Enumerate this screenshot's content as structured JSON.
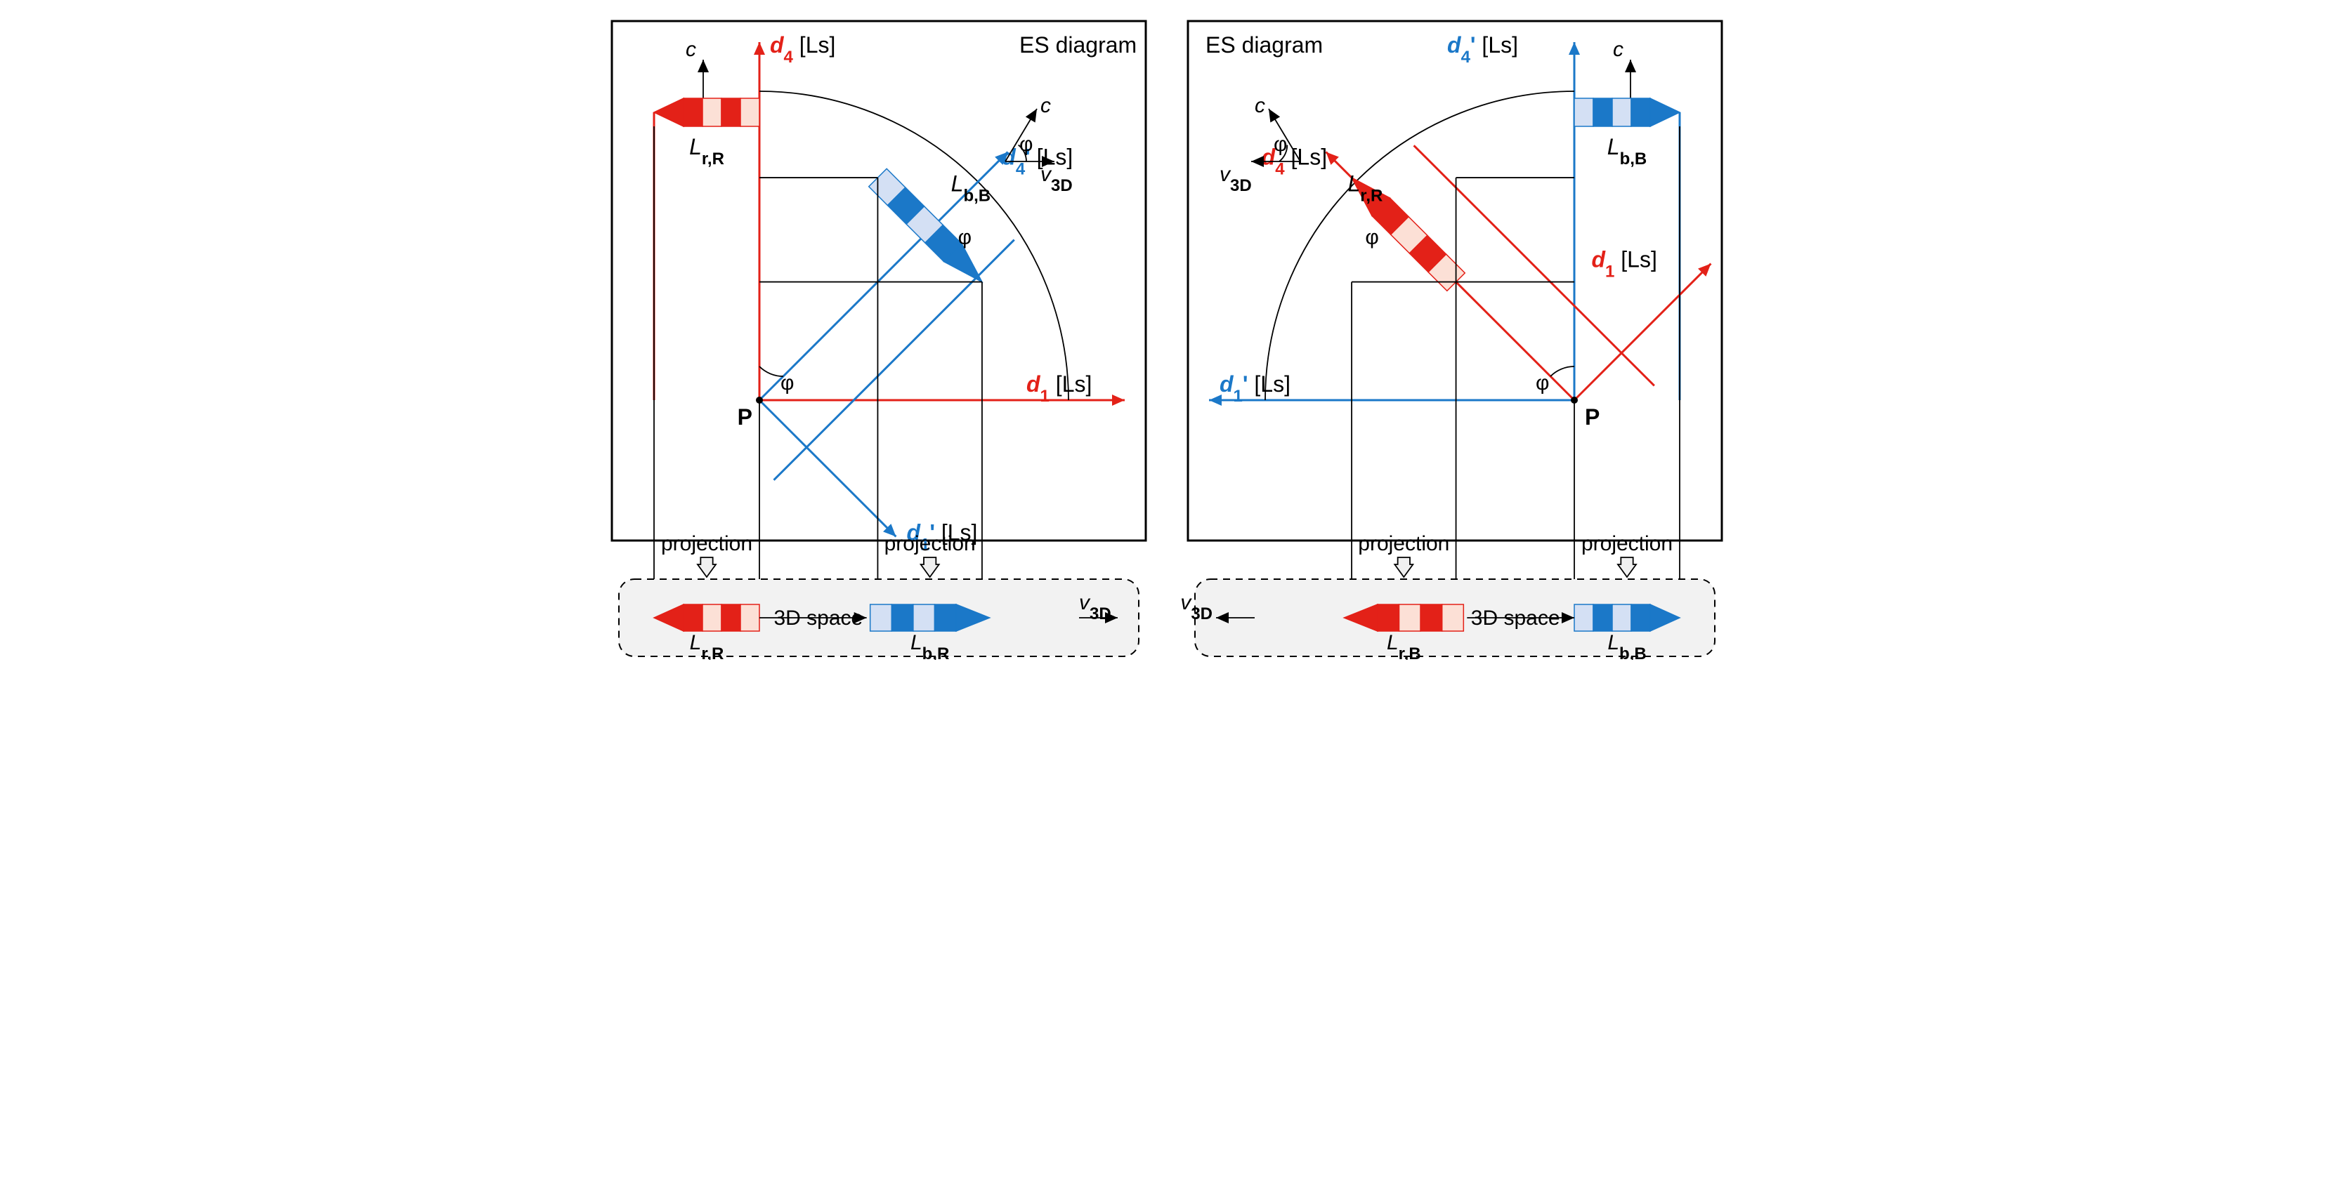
{
  "colors": {
    "red": "#e32118",
    "redLight": "#fce0d6",
    "blue": "#1b78c8",
    "blueLight": "#d4e0f4",
    "border": "#000000",
    "arrowFill": "#f0f0f0",
    "projBoxFill": "#f2f2f2",
    "projBoxStroke": "#000000"
  },
  "text": {
    "esDiagram": "ES diagram",
    "projection": "projection",
    "space3d": "3D space",
    "unit": "[Ls]",
    "c": "c",
    "phi": "φ",
    "P": "P",
    "v3d": "v",
    "v3d_sub": "3D",
    "d1": "d",
    "d4": "d",
    "d1_sub": "1",
    "d4_sub": "4",
    "LrR": "L",
    "LrR_sub": "r,R",
    "LbB": "L",
    "LbB_sub": "b,B",
    "LbR_sub": "b,R",
    "LrB_sub": "r,B"
  },
  "style": {
    "panelW": 760,
    "panelH": 760,
    "stroke": 3,
    "thinStroke": 1.8,
    "fontSize": 30,
    "smallFont": 24,
    "originX": 210,
    "originY": 540,
    "arcR": 460,
    "angleDeg": 45,
    "rocketLen": 260,
    "rocketH": 40,
    "projBoxH": 120
  }
}
